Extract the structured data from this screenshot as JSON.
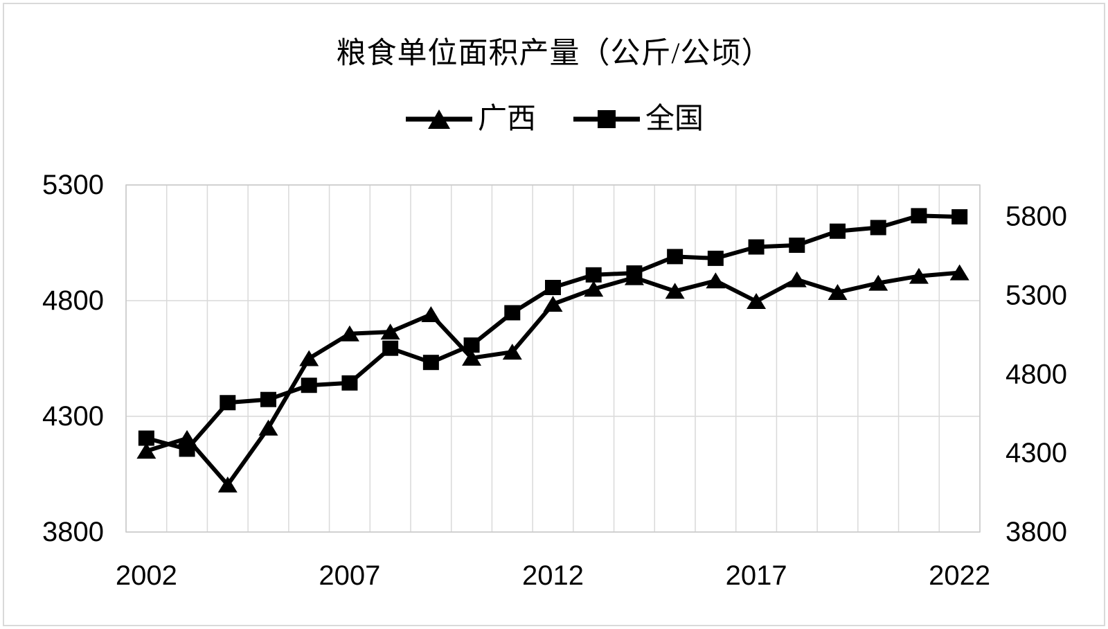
{
  "chart_title": "粮食单位面积产量（公斤/公顷）",
  "legend": {
    "items": [
      {
        "label": "广西",
        "marker": "triangle"
      },
      {
        "label": "全国",
        "marker": "square"
      }
    ]
  },
  "chart_data": {
    "type": "line",
    "title": "粮食单位面积产量（公斤/公顷）",
    "x": [
      2002,
      2003,
      2004,
      2005,
      2006,
      2007,
      2008,
      2009,
      2010,
      2011,
      2012,
      2013,
      2014,
      2015,
      2016,
      2017,
      2018,
      2019,
      2020,
      2021,
      2022
    ],
    "series": [
      {
        "key": "guangxi",
        "name": "广西",
        "axis": "left",
        "marker": "triangle",
        "color": "#000000",
        "values": [
          4150,
          4205,
          4004,
          4250,
          4550,
          4657,
          4665,
          4740,
          4552,
          4578,
          4785,
          4850,
          4900,
          4841,
          4886,
          4797,
          4891,
          4836,
          4876,
          4906,
          4921
        ]
      },
      {
        "key": "national",
        "name": "全国",
        "axis": "right",
        "marker": "square",
        "color": "#000000",
        "values": [
          4395,
          4325,
          4620,
          4640,
          4730,
          4745,
          4965,
          4875,
          4985,
          5190,
          5350,
          5430,
          5442,
          5546,
          5535,
          5607,
          5618,
          5707,
          5730,
          5805,
          5798
        ]
      }
    ],
    "left_axis": {
      "min": 3800,
      "max": 5300,
      "major_unit": 500,
      "tick_labels": [
        5300,
        4800,
        4300,
        3800
      ]
    },
    "right_axis": {
      "min": 3800,
      "max": 6000,
      "major_unit": 500,
      "tick_labels": [
        5800,
        5300,
        4800,
        4300,
        3800
      ]
    },
    "x_tick_labels": [
      2002,
      2007,
      2012,
      2017,
      2022
    ],
    "grid": true,
    "legend_position": "top",
    "colors": {
      "series": "#000000",
      "gridline": "#d9d9d9",
      "plot_border": "#c8c8c8",
      "background": "#ffffff",
      "text": "#000000"
    }
  }
}
